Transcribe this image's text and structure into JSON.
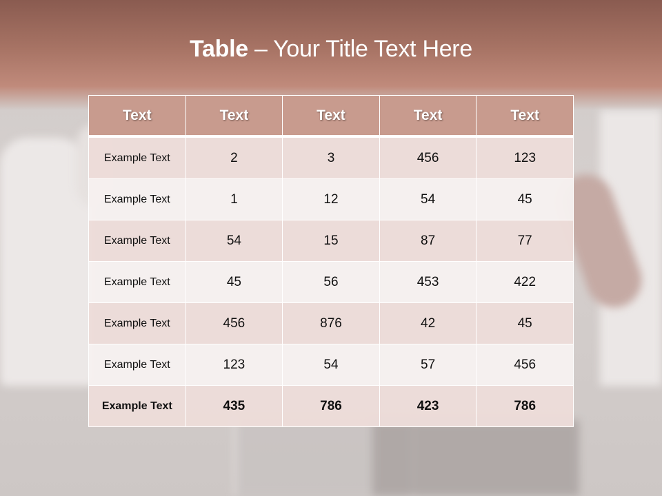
{
  "title": {
    "bold": "Table",
    "rest": " – Your Title Text Here"
  },
  "table": {
    "headers": [
      "Text",
      "Text",
      "Text",
      "Text",
      "Text"
    ],
    "rows": [
      [
        "Example Text",
        "2",
        "3",
        "456",
        "123"
      ],
      [
        "Example Text",
        "1",
        "12",
        "54",
        "45"
      ],
      [
        "Example Text",
        "54",
        "15",
        "87",
        "77"
      ],
      [
        "Example Text",
        "45",
        "56",
        "453",
        "422"
      ],
      [
        "Example Text",
        "456",
        "876",
        "42",
        "45"
      ],
      [
        "Example Text",
        "123",
        "54",
        "57",
        "456"
      ],
      [
        "Example Text",
        "435",
        "786",
        "423",
        "786"
      ]
    ]
  },
  "colors": {
    "header_fill": "#c89b8e",
    "band_top": "#8a5b50",
    "row_dark": "#ecdcd9",
    "row_light": "#f6f1ef"
  }
}
